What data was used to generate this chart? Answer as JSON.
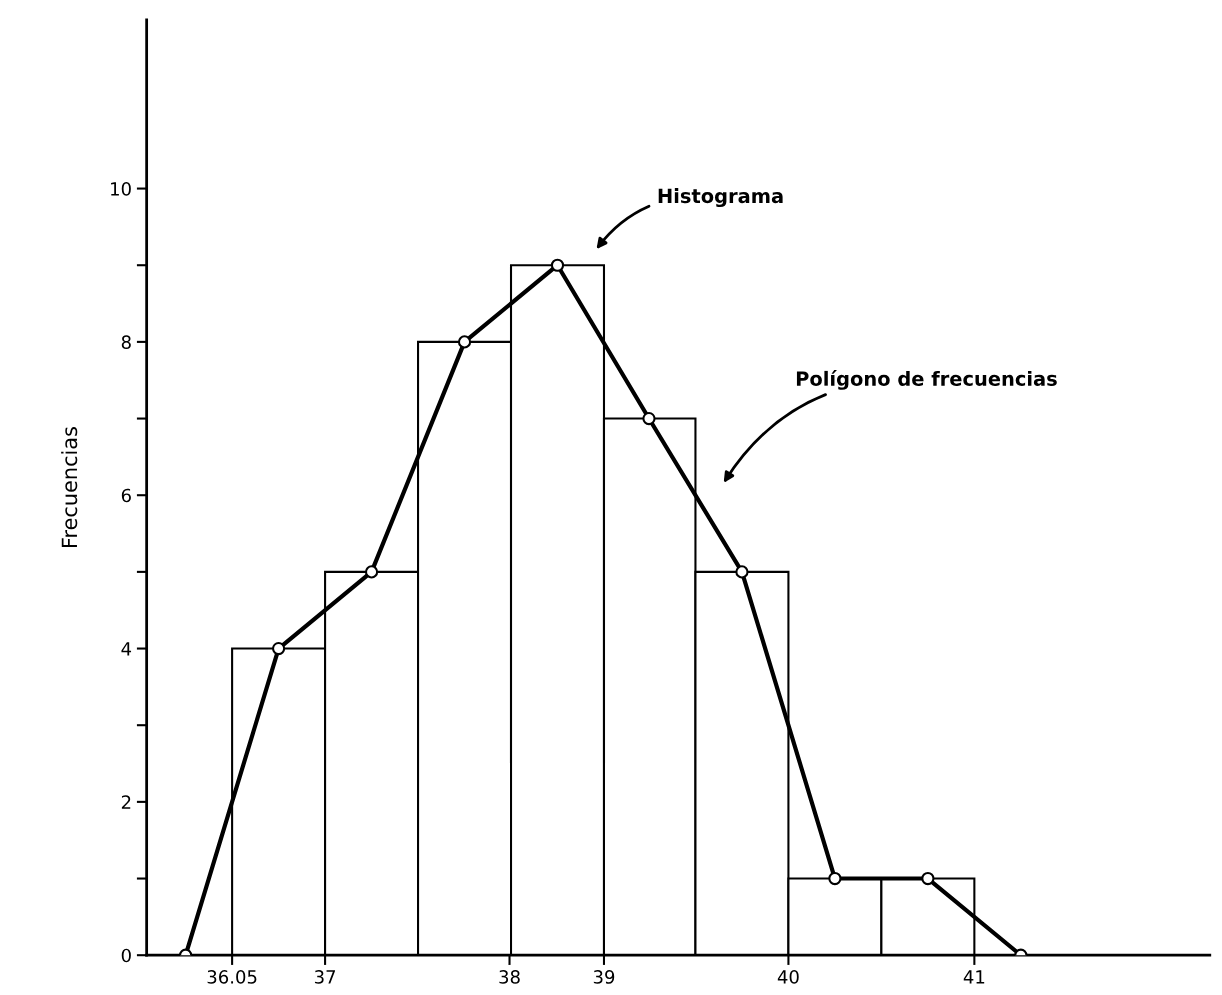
{
  "chart_data": {
    "type": "histogram",
    "ylabel": "Frecuencias",
    "series": [
      {
        "bins": [
          36.05,
          36.67,
          37.29,
          37.91,
          38.53,
          39.14,
          39.76,
          40.38,
          41.0
        ],
        "values": [
          4,
          5,
          8,
          9,
          7,
          5,
          1,
          1
        ],
        "color": "#ffffff"
      },
      {
        "type": "line",
        "x": [
          35.74,
          36.36,
          36.98,
          37.6,
          38.22,
          38.83,
          39.45,
          40.07,
          40.69,
          41.31
        ],
        "values": [
          0,
          4,
          5,
          8,
          9,
          7,
          5,
          1,
          1,
          0
        ],
        "color": "#000000"
      }
    ],
    "marker": "circle",
    "line_style": "solid",
    "xlim": [
      35.48,
      42.57
    ],
    "ylim": [
      0,
      12.2
    ],
    "xticks": [
      {
        "value": 36.05,
        "label": "36.05"
      },
      {
        "value": 36.67,
        "label": "37"
      },
      {
        "value": 37.9,
        "label": "38"
      },
      {
        "value": 38.53,
        "label": "39"
      },
      {
        "value": 39.76,
        "label": "40"
      },
      {
        "value": 41.0,
        "label": "41"
      }
    ],
    "yticks": [
      0,
      {
        "value": 1,
        "label": null
      },
      2,
      {
        "value": 3,
        "label": null
      },
      4,
      {
        "value": 5,
        "label": null
      },
      6,
      {
        "value": 7,
        "label": null
      },
      8,
      {
        "value": 9,
        "label": null
      },
      10
    ],
    "grid": false,
    "legend": false,
    "annotations": [
      "Histograma",
      "Polígono de frecuencias"
    ]
  }
}
